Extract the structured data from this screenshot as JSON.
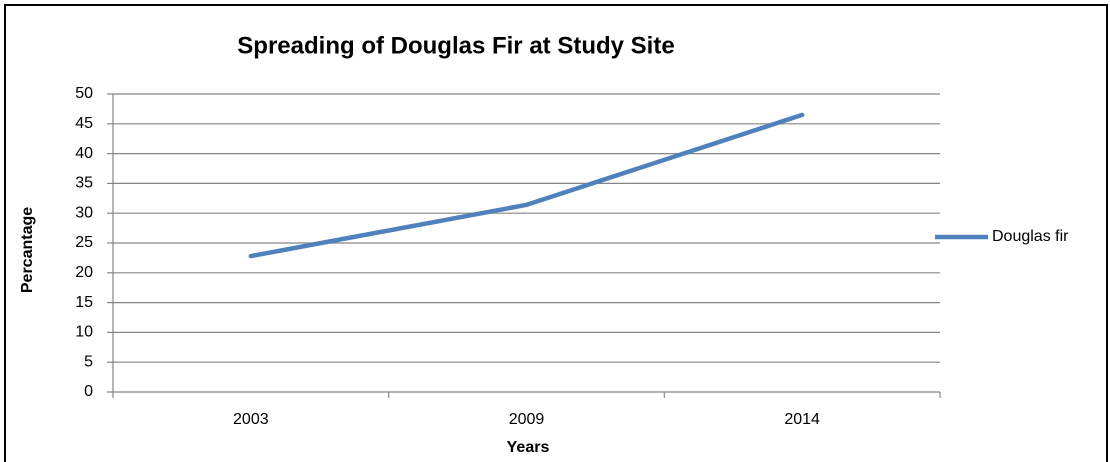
{
  "chart_data": {
    "type": "line",
    "title": "Spreading of Douglas Fir at Study Site",
    "x_label": "Years",
    "y_label": "Percantage",
    "categories": [
      "2003",
      "2009",
      "2014"
    ],
    "series": [
      {
        "name": "Douglas fir",
        "color": "#4f81bd",
        "values": [
          22.8,
          31.4,
          46.5
        ]
      }
    ],
    "ylim": [
      0,
      50
    ],
    "yticks": [
      0,
      5,
      10,
      15,
      20,
      25,
      30,
      35,
      40,
      45,
      50
    ],
    "grid": true,
    "legend": "right"
  }
}
